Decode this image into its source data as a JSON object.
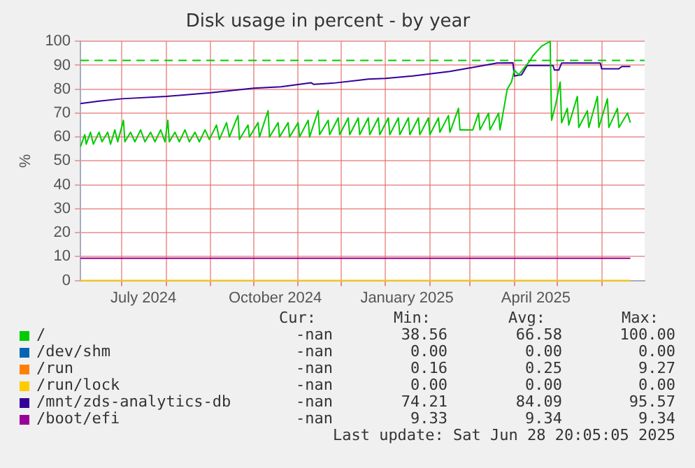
{
  "chart_data": {
    "type": "line",
    "title": "Disk usage in percent - by year",
    "ylabel": "%",
    "xlim": [
      "2024-06-02",
      "2025-07-01"
    ],
    "xticks": [
      {
        "value": "2024-07-01",
        "label": null
      },
      {
        "value": "2024-07-16",
        "label": "July 2024"
      },
      {
        "value": "2024-08-01",
        "label": null
      },
      {
        "value": "2024-09-01",
        "label": null
      },
      {
        "value": "2024-10-01",
        "label": null
      },
      {
        "value": "2024-10-16",
        "label": "October 2024"
      },
      {
        "value": "2024-11-01",
        "label": null
      },
      {
        "value": "2024-12-01",
        "label": null
      },
      {
        "value": "2025-01-01",
        "label": null
      },
      {
        "value": "2025-01-16",
        "label": "January 2025"
      },
      {
        "value": "2025-02-01",
        "label": null
      },
      {
        "value": "2025-03-01",
        "label": null
      },
      {
        "value": "2025-04-01",
        "label": null
      },
      {
        "value": "2025-04-16",
        "label": "April 2025"
      },
      {
        "value": "2025-05-01",
        "label": null
      },
      {
        "value": "2025-06-01",
        "label": null
      }
    ],
    "ylim": [
      0,
      100
    ],
    "yticks": [
      0,
      10,
      20,
      30,
      40,
      50,
      60,
      70,
      80,
      90,
      100
    ],
    "grid": true,
    "legend": "bottom",
    "ref_lines": [
      {
        "axis": "y",
        "value": 92,
        "color": "#00cc00",
        "line_style": "dashed"
      }
    ],
    "series": [
      {
        "name": "/",
        "color": "#00cc00",
        "x": [
          "2024-06-02",
          "2024-06-05",
          "2024-06-06",
          "2024-06-09",
          "2024-06-11",
          "2024-06-15",
          "2024-06-17",
          "2024-06-21",
          "2024-06-23",
          "2024-06-26",
          "2024-06-28",
          "2024-07-02",
          "2024-07-03",
          "2024-07-07",
          "2024-07-10",
          "2024-07-14",
          "2024-07-17",
          "2024-07-21",
          "2024-07-24",
          "2024-07-28",
          "2024-07-31",
          "2024-08-02",
          "2024-08-03",
          "2024-08-07",
          "2024-08-10",
          "2024-08-14",
          "2024-08-17",
          "2024-08-21",
          "2024-08-24",
          "2024-08-28",
          "2024-08-31",
          "2024-09-05",
          "2024-09-07",
          "2024-09-12",
          "2024-09-14",
          "2024-09-20",
          "2024-09-21",
          "2024-09-27",
          "2024-09-28",
          "2024-10-04",
          "2024-10-05",
          "2024-10-11",
          "2024-10-12",
          "2024-10-18",
          "2024-10-19",
          "2024-10-25",
          "2024-10-26",
          "2024-11-01",
          "2024-11-02",
          "2024-11-08",
          "2024-11-09",
          "2024-11-15",
          "2024-11-16",
          "2024-11-22",
          "2024-11-23",
          "2024-11-29",
          "2024-11-30",
          "2024-12-06",
          "2024-12-07",
          "2024-12-13",
          "2024-12-14",
          "2024-12-20",
          "2024-12-21",
          "2024-12-27",
          "2024-12-28",
          "2025-01-03",
          "2025-01-04",
          "2025-01-10",
          "2025-01-11",
          "2025-01-17",
          "2025-01-18",
          "2025-01-24",
          "2025-01-25",
          "2025-01-31",
          "2025-02-01",
          "2025-02-07",
          "2025-02-08",
          "2025-02-14",
          "2025-02-15",
          "2025-02-21",
          "2025-02-22",
          "2025-03-03",
          "2025-03-07",
          "2025-03-08",
          "2025-03-14",
          "2025-03-15",
          "2025-03-21",
          "2025-03-22",
          "2025-03-25",
          "2025-03-27",
          "2025-03-30",
          "2025-04-01",
          "2025-04-04",
          "2025-04-08",
          "2025-04-12",
          "2025-04-14",
          "2025-04-20",
          "2025-04-26",
          "2025-04-27",
          "2025-04-30",
          "2025-05-03",
          "2025-05-04",
          "2025-05-08",
          "2025-05-09",
          "2025-05-15",
          "2025-05-16",
          "2025-05-22",
          "2025-05-23",
          "2025-05-29",
          "2025-05-30",
          "2025-06-05",
          "2025-06-06",
          "2025-06-12",
          "2025-06-13",
          "2025-06-19",
          "2025-06-21"
        ],
        "values": [
          56,
          61,
          57,
          62,
          57,
          62,
          58,
          62,
          57,
          63,
          58,
          67,
          58,
          62,
          58,
          63,
          58,
          62,
          58,
          63,
          58,
          67,
          58,
          62,
          58,
          63,
          58,
          62,
          58,
          63,
          59,
          65,
          59,
          66,
          60,
          69,
          59,
          65,
          60,
          66,
          60,
          71,
          60,
          66,
          60,
          66,
          60,
          66,
          60,
          67,
          60,
          71,
          61,
          67,
          61,
          68,
          61,
          68,
          61,
          68,
          61,
          68,
          61,
          68,
          61,
          68,
          61,
          68,
          61,
          68,
          61,
          68,
          61,
          68,
          61,
          68,
          62,
          69,
          62,
          72,
          63,
          63,
          70,
          63,
          70,
          63,
          70,
          63,
          73,
          80,
          83,
          88,
          86,
          89,
          92,
          94,
          98,
          100,
          67,
          74,
          83,
          66,
          72,
          65,
          77,
          64,
          71,
          64,
          77,
          64,
          76,
          64,
          72,
          64,
          70,
          66
        ]
      },
      {
        "name": "/dev/shm",
        "color": "#0066b3"
      },
      {
        "name": "/run",
        "color": "#ff8000"
      },
      {
        "name": "/run/lock",
        "color": "#ffcc00",
        "x": [
          "2024-06-02",
          "2025-06-21"
        ],
        "values": [
          0,
          0
        ]
      },
      {
        "name": "/mnt/zds-analytics-db",
        "color": "#330099",
        "x": [
          "2024-06-02",
          "2024-06-15",
          "2024-07-01",
          "2024-08-01",
          "2024-09-01",
          "2024-10-01",
          "2024-10-20",
          "2024-11-10",
          "2024-11-12",
          "2024-11-25",
          "2024-12-20",
          "2025-01-01",
          "2025-01-20",
          "2025-02-15",
          "2025-03-05",
          "2025-03-20",
          "2025-03-31",
          "2025-04-01",
          "2025-04-06",
          "2025-04-10",
          "2025-04-28",
          "2025-04-29",
          "2025-05-02",
          "2025-05-04",
          "2025-05-31",
          "2025-06-01",
          "2025-06-13",
          "2025-06-15",
          "2025-06-21"
        ],
        "values": [
          74,
          75,
          76,
          77,
          78.5,
          80.4,
          81,
          82.7,
          82,
          82.5,
          84.2,
          84.5,
          85.5,
          87.4,
          89.3,
          90.9,
          91,
          85.5,
          86,
          89.9,
          89.9,
          88,
          88,
          90.9,
          90.9,
          88.5,
          88.5,
          89.5,
          89.5
        ]
      },
      {
        "name": "/boot/efi",
        "color": "#990099",
        "x": [
          "2024-06-02",
          "2025-06-21"
        ],
        "values": [
          9.3,
          9.3
        ]
      }
    ],
    "annotations": [
      "Cur:",
      "Min:",
      "Avg:",
      "Max:",
      "-nan",
      "38.56",
      "66.58",
      "100.00",
      "-nan",
      "0.00",
      "0.00",
      "0.00",
      "-nan",
      "0.16",
      "0.25",
      "9.27",
      "-nan",
      "0.00",
      "0.00",
      "0.00",
      "-nan",
      "74.21",
      "84.09",
      "95.57",
      "-nan",
      "9.33",
      "9.34",
      "9.34",
      "Last update: Sat Jun 28 20:05:05 2025"
    ]
  }
}
